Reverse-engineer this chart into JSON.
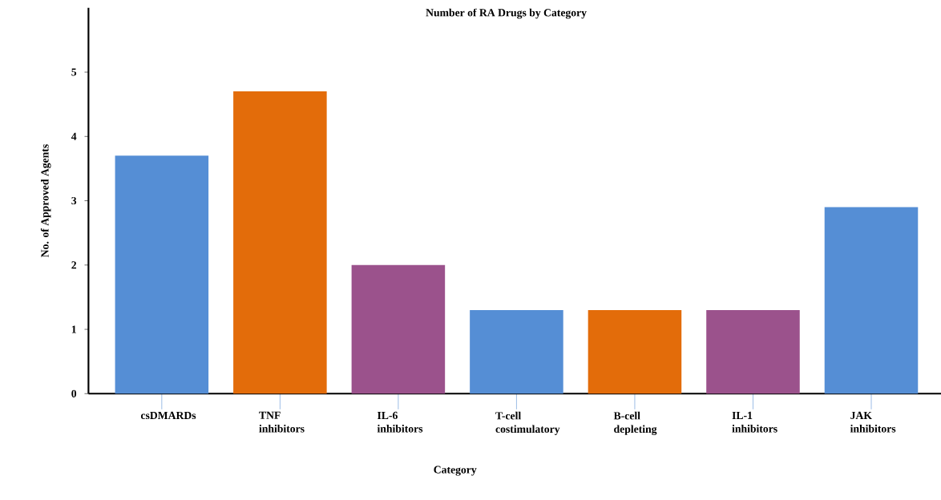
{
  "chart_data": {
    "type": "bar",
    "title": "Number of RA Drugs by Category",
    "xlabel": "Category",
    "ylabel": "No. of Approved Agents",
    "categories": [
      "csDMARDs",
      "TNF inhibitors",
      "IL-6 inhibitors",
      "T-cell costimulatory",
      "B-cell depleting",
      "IL-1 inhibitors",
      "JAK inhibitors"
    ],
    "values": [
      3.7,
      4.7,
      2.0,
      1.3,
      1.3,
      1.3,
      2.9
    ],
    "colors": [
      "#558ed5",
      "#e36c0a",
      "#9b528c",
      "#558ed5",
      "#e36c0a",
      "#9b528c",
      "#558ed5"
    ],
    "ylim": [
      0,
      6
    ],
    "yticks": [
      0,
      1,
      2,
      3,
      4,
      5
    ]
  }
}
